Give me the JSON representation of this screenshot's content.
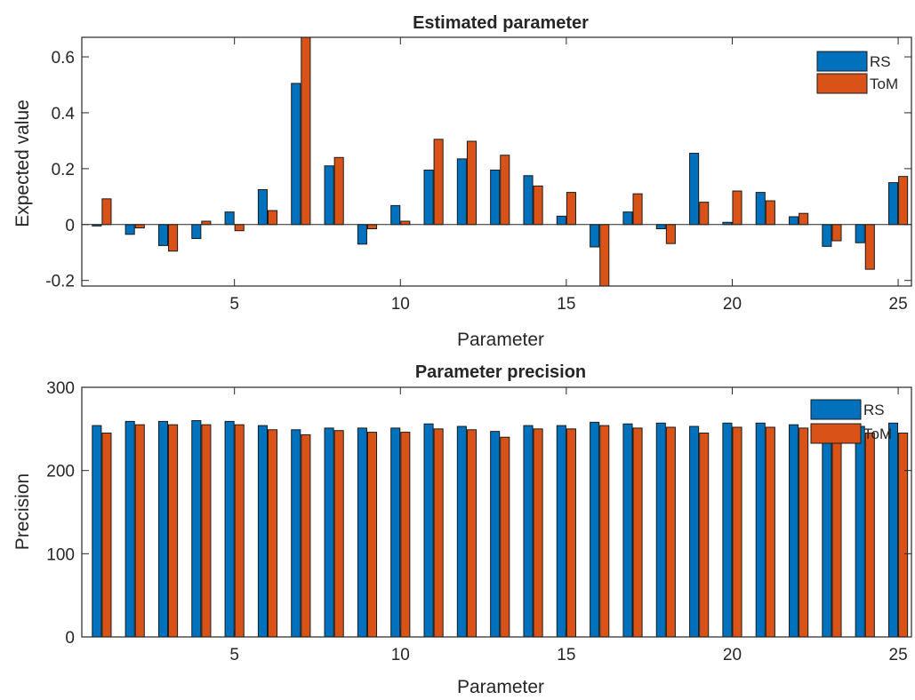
{
  "colors": {
    "rs": "#0072BD",
    "tom": "#D95319",
    "axis": "#262626"
  },
  "chart_data": [
    {
      "type": "bar",
      "title": "Estimated parameter",
      "xlabel": "Parameter",
      "ylabel": "Expected value",
      "x": [
        1,
        2,
        3,
        4,
        5,
        6,
        7,
        8,
        9,
        10,
        11,
        12,
        13,
        14,
        15,
        16,
        17,
        18,
        19,
        20,
        21,
        22,
        23,
        24,
        25
      ],
      "xlim": [
        0.4,
        25.4
      ],
      "ylim": [
        -0.22,
        0.67
      ],
      "xticks": [
        "5",
        "10",
        "15",
        "20",
        "25"
      ],
      "yticks": [
        "-0.2",
        "0",
        "0.2",
        "0.4",
        "0.6"
      ],
      "legend_position": "top-right",
      "series": [
        {
          "name": "RS",
          "values": [
            -0.005,
            -0.035,
            -0.075,
            -0.05,
            0.045,
            0.125,
            0.505,
            0.21,
            -0.07,
            0.068,
            0.195,
            0.235,
            0.195,
            0.175,
            0.03,
            -0.08,
            0.045,
            -0.015,
            0.255,
            0.008,
            0.115,
            0.028,
            -0.078,
            -0.065,
            0.15
          ]
        },
        {
          "name": "ToM",
          "values": [
            0.092,
            -0.012,
            -0.095,
            0.012,
            -0.022,
            0.05,
            0.67,
            0.24,
            -0.015,
            0.012,
            0.305,
            0.298,
            0.248,
            0.138,
            0.115,
            -0.22,
            0.11,
            -0.068,
            0.08,
            0.12,
            0.085,
            0.04,
            -0.058,
            -0.16,
            0.172
          ]
        }
      ]
    },
    {
      "type": "bar",
      "title": "Parameter precision",
      "xlabel": "Parameter",
      "ylabel": "Precision",
      "x": [
        1,
        2,
        3,
        4,
        5,
        6,
        7,
        8,
        9,
        10,
        11,
        12,
        13,
        14,
        15,
        16,
        17,
        18,
        19,
        20,
        21,
        22,
        23,
        24,
        25
      ],
      "xlim": [
        0.4,
        25.4
      ],
      "ylim": [
        0,
        300
      ],
      "xticks": [
        "5",
        "10",
        "15",
        "20",
        "25"
      ],
      "yticks": [
        "0",
        "100",
        "200",
        "300"
      ],
      "legend_position": "top-right",
      "series": [
        {
          "name": "RS",
          "values": [
            254,
            259,
            259,
            260,
            259,
            254,
            249,
            251,
            251,
            251,
            256,
            253,
            247,
            254,
            254,
            258,
            256,
            257,
            253,
            257,
            257,
            255,
            250,
            253,
            257
          ]
        },
        {
          "name": "ToM",
          "values": [
            245,
            255,
            255,
            255,
            255,
            249,
            243,
            248,
            246,
            246,
            250,
            249,
            240,
            250,
            250,
            254,
            251,
            252,
            245,
            252,
            252,
            251,
            245,
            245,
            245
          ]
        }
      ]
    }
  ]
}
